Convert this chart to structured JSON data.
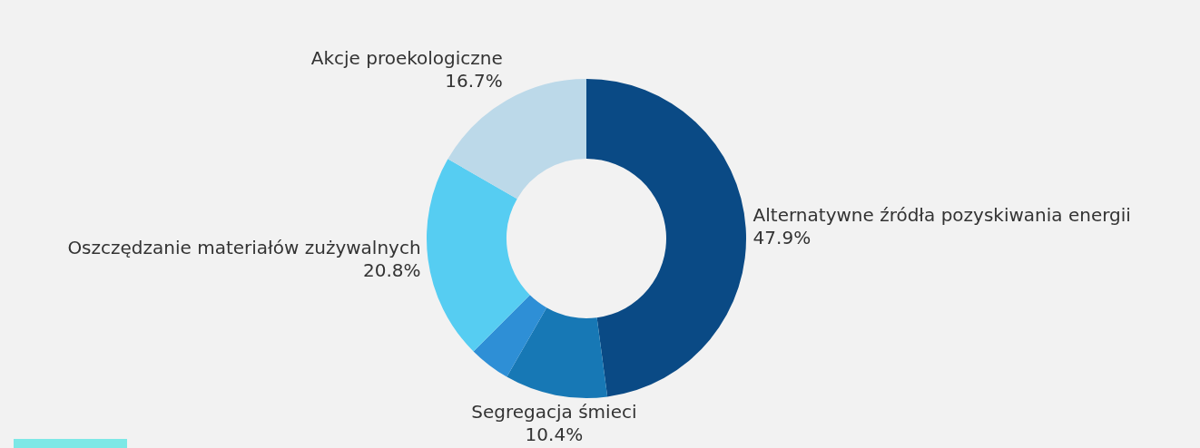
{
  "chart_data": {
    "type": "donut",
    "categories": [
      "Alternatywne źródła pozyskiwania energii",
      "Segregacja śmieci",
      null,
      "Oszczędzanie materiałów zużywalnych",
      "Akcje proekologiczne"
    ],
    "values": [
      47.9,
      10.4,
      4.2,
      20.8,
      16.7
    ],
    "value_labels": [
      "47.9%",
      "10.4%",
      null,
      "20.8%",
      "16.7%"
    ],
    "colors": [
      "#0a4a85",
      "#1778b5",
      "#2e8fd6",
      "#56cdf2",
      "#bcd9e9"
    ],
    "legend": false
  }
}
